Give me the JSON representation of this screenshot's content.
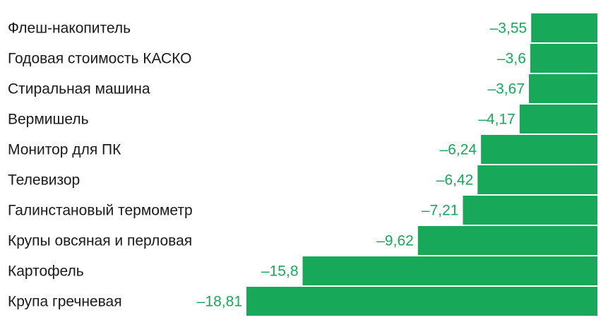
{
  "chart_data": {
    "type": "bar",
    "orientation": "horizontal",
    "categories": [
      "Флеш-накопитель",
      "Годовая стоимость КАСКО",
      "Стиральная машина",
      "Вермишель",
      "Монитор для ПК",
      "Телевизор",
      "Галинстановый термометр",
      "Крупы овсяная и перловая",
      "Картофель",
      "Крупа гречневая"
    ],
    "value_labels": [
      "–3,55",
      "–3,6",
      "–3,67",
      "–4,17",
      "–6,24",
      "–6,42",
      "–7,21",
      "–9,62",
      "–15,8",
      "–18,81"
    ],
    "values": [
      -3.55,
      -3.6,
      -3.67,
      -4.17,
      -6.24,
      -6.42,
      -7.21,
      -9.62,
      -15.8,
      -18.81
    ],
    "title": "",
    "xlabel": "",
    "ylabel": "",
    "xlim": [
      -18.81,
      0
    ],
    "grid": false,
    "legend": "none",
    "colors": {
      "bar": "#17a85a",
      "value_text": "#17a85a",
      "category_text": "#1a1a1a"
    }
  }
}
